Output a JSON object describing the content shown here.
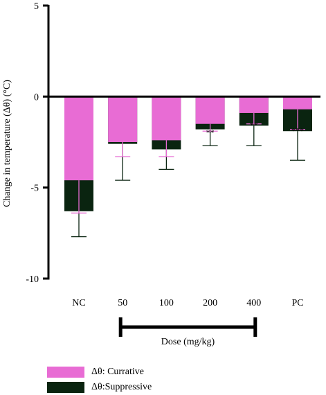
{
  "chart_data": {
    "type": "bar",
    "stacking": "overlay",
    "ylabel": "Change in temperature (Δθ) (°C)",
    "xlabel": "Dose (mg/kg)",
    "ylim": [
      -10,
      5
    ],
    "yticks": [
      "5",
      "0",
      "-5",
      "-10"
    ],
    "yticks_values": [
      5,
      0,
      -5,
      -10
    ],
    "categories": [
      "NC",
      "50",
      "100",
      "200",
      "400",
      "PC"
    ],
    "dose_bracket_categories": [
      "50",
      "100",
      "200",
      "400"
    ],
    "series": [
      {
        "name": "Δθ:Suppressive",
        "color": "#0a2410",
        "values": [
          -6.3,
          -2.6,
          -2.9,
          -1.8,
          -1.6,
          -1.9
        ],
        "error": [
          1.4,
          2.0,
          1.1,
          0.9,
          1.1,
          1.6
        ],
        "error_color": "#0a2410"
      },
      {
        "name": "Δθ: Currative",
        "color": "#e86cd4",
        "values": [
          -4.6,
          -2.5,
          -2.4,
          -1.5,
          -0.9,
          -0.7
        ],
        "error": [
          1.8,
          0.8,
          0.9,
          0.4,
          0.6,
          1.1
        ],
        "error_color": "#e86cd4"
      }
    ],
    "annotations": [
      "",
      "",
      "",
      "**",
      "**",
      "***"
    ],
    "grid": false,
    "legend_position": "bottom-left"
  },
  "legend": {
    "items": [
      {
        "label": "Δθ: Currative",
        "color": "#e86cd4"
      },
      {
        "label": "Δθ:Suppressive",
        "color": "#0a2410"
      }
    ]
  }
}
